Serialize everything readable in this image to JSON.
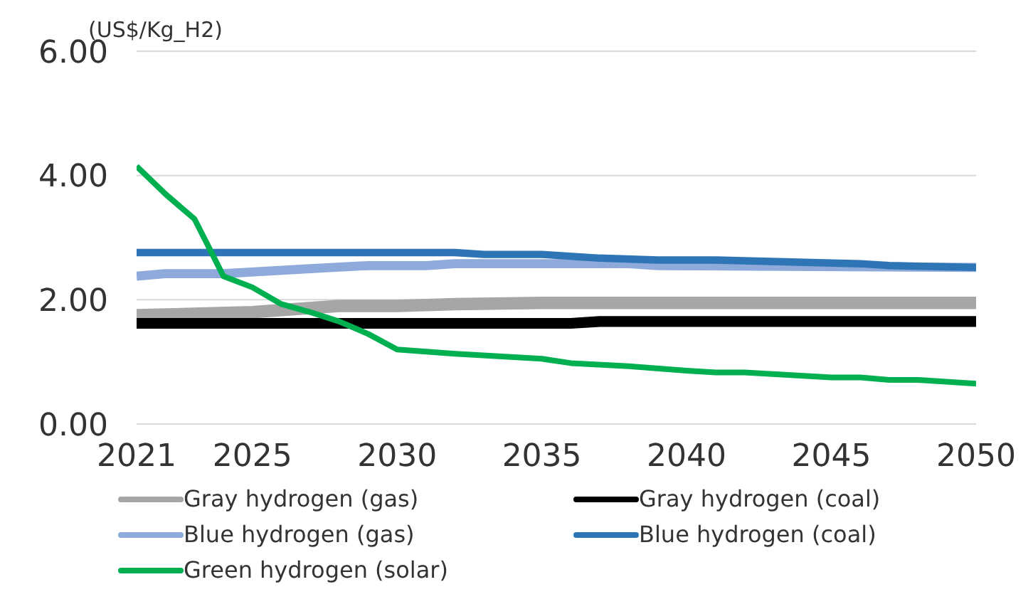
{
  "chart_data": {
    "type": "line",
    "ylabel": "(US$/Kg_H2)",
    "xlim": [
      2021,
      2050
    ],
    "xticks": [
      2021,
      2025,
      2030,
      2035,
      2040,
      2045,
      2050
    ],
    "ylim": [
      0,
      6
    ],
    "yticks": [
      {
        "value": 0,
        "label": "0.00"
      },
      {
        "value": 2,
        "label": "2.00"
      },
      {
        "value": 4,
        "label": "4.00"
      },
      {
        "value": 6,
        "label": "6.00"
      }
    ],
    "grid": "y",
    "legend": "bottom",
    "marker": "none",
    "line_style": "solid",
    "series": [
      {
        "name": "Gray hydrogen (gas)",
        "color": "#a6a6a6",
        "x": [
          2021,
          2025,
          2028,
          2030,
          2032,
          2035,
          2050
        ],
        "values": [
          1.75,
          1.8,
          1.9,
          1.9,
          1.93,
          1.95,
          1.95
        ]
      },
      {
        "name": "Gray hydrogen (coal)",
        "color": "#000000",
        "x": [
          2021,
          2036,
          2037,
          2050
        ],
        "values": [
          1.62,
          1.62,
          1.65,
          1.65
        ]
      },
      {
        "name": "Blue hydrogen (gas)",
        "color": "#8eaadb",
        "x": [
          2021,
          2022,
          2024,
          2027,
          2029,
          2031,
          2032,
          2038,
          2039,
          2050
        ],
        "values": [
          2.38,
          2.42,
          2.42,
          2.5,
          2.55,
          2.55,
          2.58,
          2.58,
          2.55,
          2.52
        ]
      },
      {
        "name": "Blue hydrogen (coal)",
        "color": "#2e75b6",
        "x": [
          2021,
          2032,
          2033,
          2035,
          2037,
          2039,
          2041,
          2046,
          2047,
          2050
        ],
        "values": [
          2.76,
          2.76,
          2.73,
          2.73,
          2.67,
          2.64,
          2.64,
          2.58,
          2.55,
          2.52
        ]
      },
      {
        "name": "Green hydrogen (solar)",
        "color": "#00b050",
        "x": [
          2021,
          2022,
          2023,
          2024,
          2025,
          2026,
          2027,
          2028,
          2029,
          2030,
          2032,
          2035,
          2036,
          2038,
          2040,
          2041,
          2042,
          2045,
          2046,
          2047,
          2048,
          2050
        ],
        "values": [
          4.15,
          3.7,
          3.3,
          2.38,
          2.2,
          1.93,
          1.8,
          1.65,
          1.45,
          1.2,
          1.13,
          1.05,
          0.98,
          0.93,
          0.86,
          0.83,
          0.83,
          0.75,
          0.75,
          0.71,
          0.71,
          0.65
        ]
      }
    ]
  }
}
